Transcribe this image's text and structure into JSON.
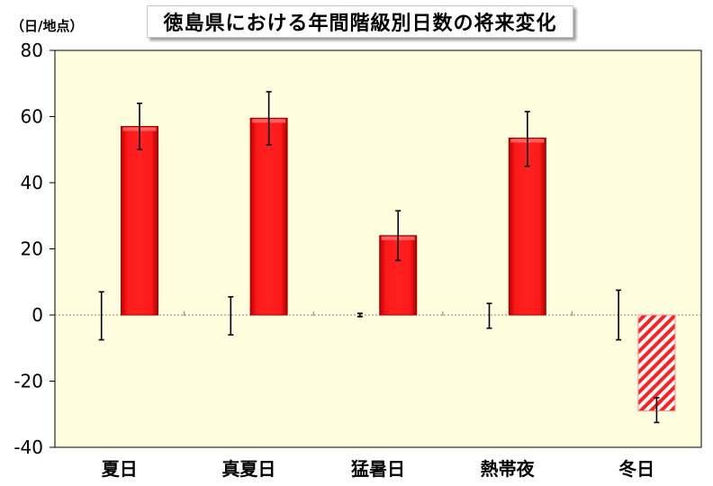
{
  "chart_data": {
    "type": "bar",
    "title": "徳島県における年間階級別日数の将来変化",
    "unit_label": "（日/地点）",
    "categories": [
      "夏日",
      "真夏日",
      "猛暑日",
      "熱帯夜",
      "冬日"
    ],
    "series": [
      {
        "values": [
          0,
          0,
          0,
          0,
          0
        ],
        "error_low": [
          -7.5,
          -6,
          -0.5,
          -4,
          -7.5
        ],
        "error_high": [
          7,
          5.5,
          0.5,
          3.5,
          7.5
        ],
        "color": "none"
      },
      {
        "values": [
          57,
          59.5,
          24,
          53.5,
          -29
        ],
        "error_low": [
          50,
          51.5,
          16.5,
          45,
          -32.5
        ],
        "error_high": [
          64,
          67.5,
          31.5,
          61.5,
          -25
        ],
        "color": "#ff0000",
        "hatched": [
          false,
          false,
          false,
          false,
          true
        ]
      }
    ],
    "ylim": [
      -40,
      80
    ],
    "yticks": [
      "-40",
      "-20",
      "0",
      "20",
      "40",
      "60",
      "80"
    ],
    "plot_background": "#ffffe0",
    "zero_line": "dashed",
    "grid": false,
    "legend": "none"
  }
}
